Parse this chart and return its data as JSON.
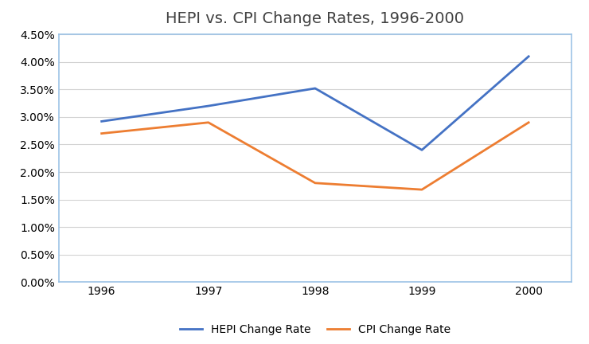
{
  "years": [
    1996,
    1997,
    1998,
    1999,
    2000
  ],
  "hepi": [
    0.0292,
    0.032,
    0.0352,
    0.024,
    0.041
  ],
  "cpi": [
    0.027,
    0.029,
    0.018,
    0.0168,
    0.029
  ],
  "hepi_color": "#4472C4",
  "cpi_color": "#ED7D31",
  "title": "HEPI vs. CPI Change Rates, 1996-2000",
  "title_fontsize": 14,
  "legend_labels": [
    "HEPI Change Rate",
    "CPI Change Rate"
  ],
  "ylim": [
    0.0,
    0.045
  ],
  "yticks": [
    0.0,
    0.005,
    0.01,
    0.015,
    0.02,
    0.025,
    0.03,
    0.035,
    0.04,
    0.045
  ],
  "line_width": 2.0,
  "grid_color": "#D3D3D3",
  "spine_color": "#9DC3E6",
  "background_color": "#FFFFFF",
  "plot_bg_color": "#FFFFFF",
  "tick_fontsize": 10,
  "legend_fontsize": 10
}
